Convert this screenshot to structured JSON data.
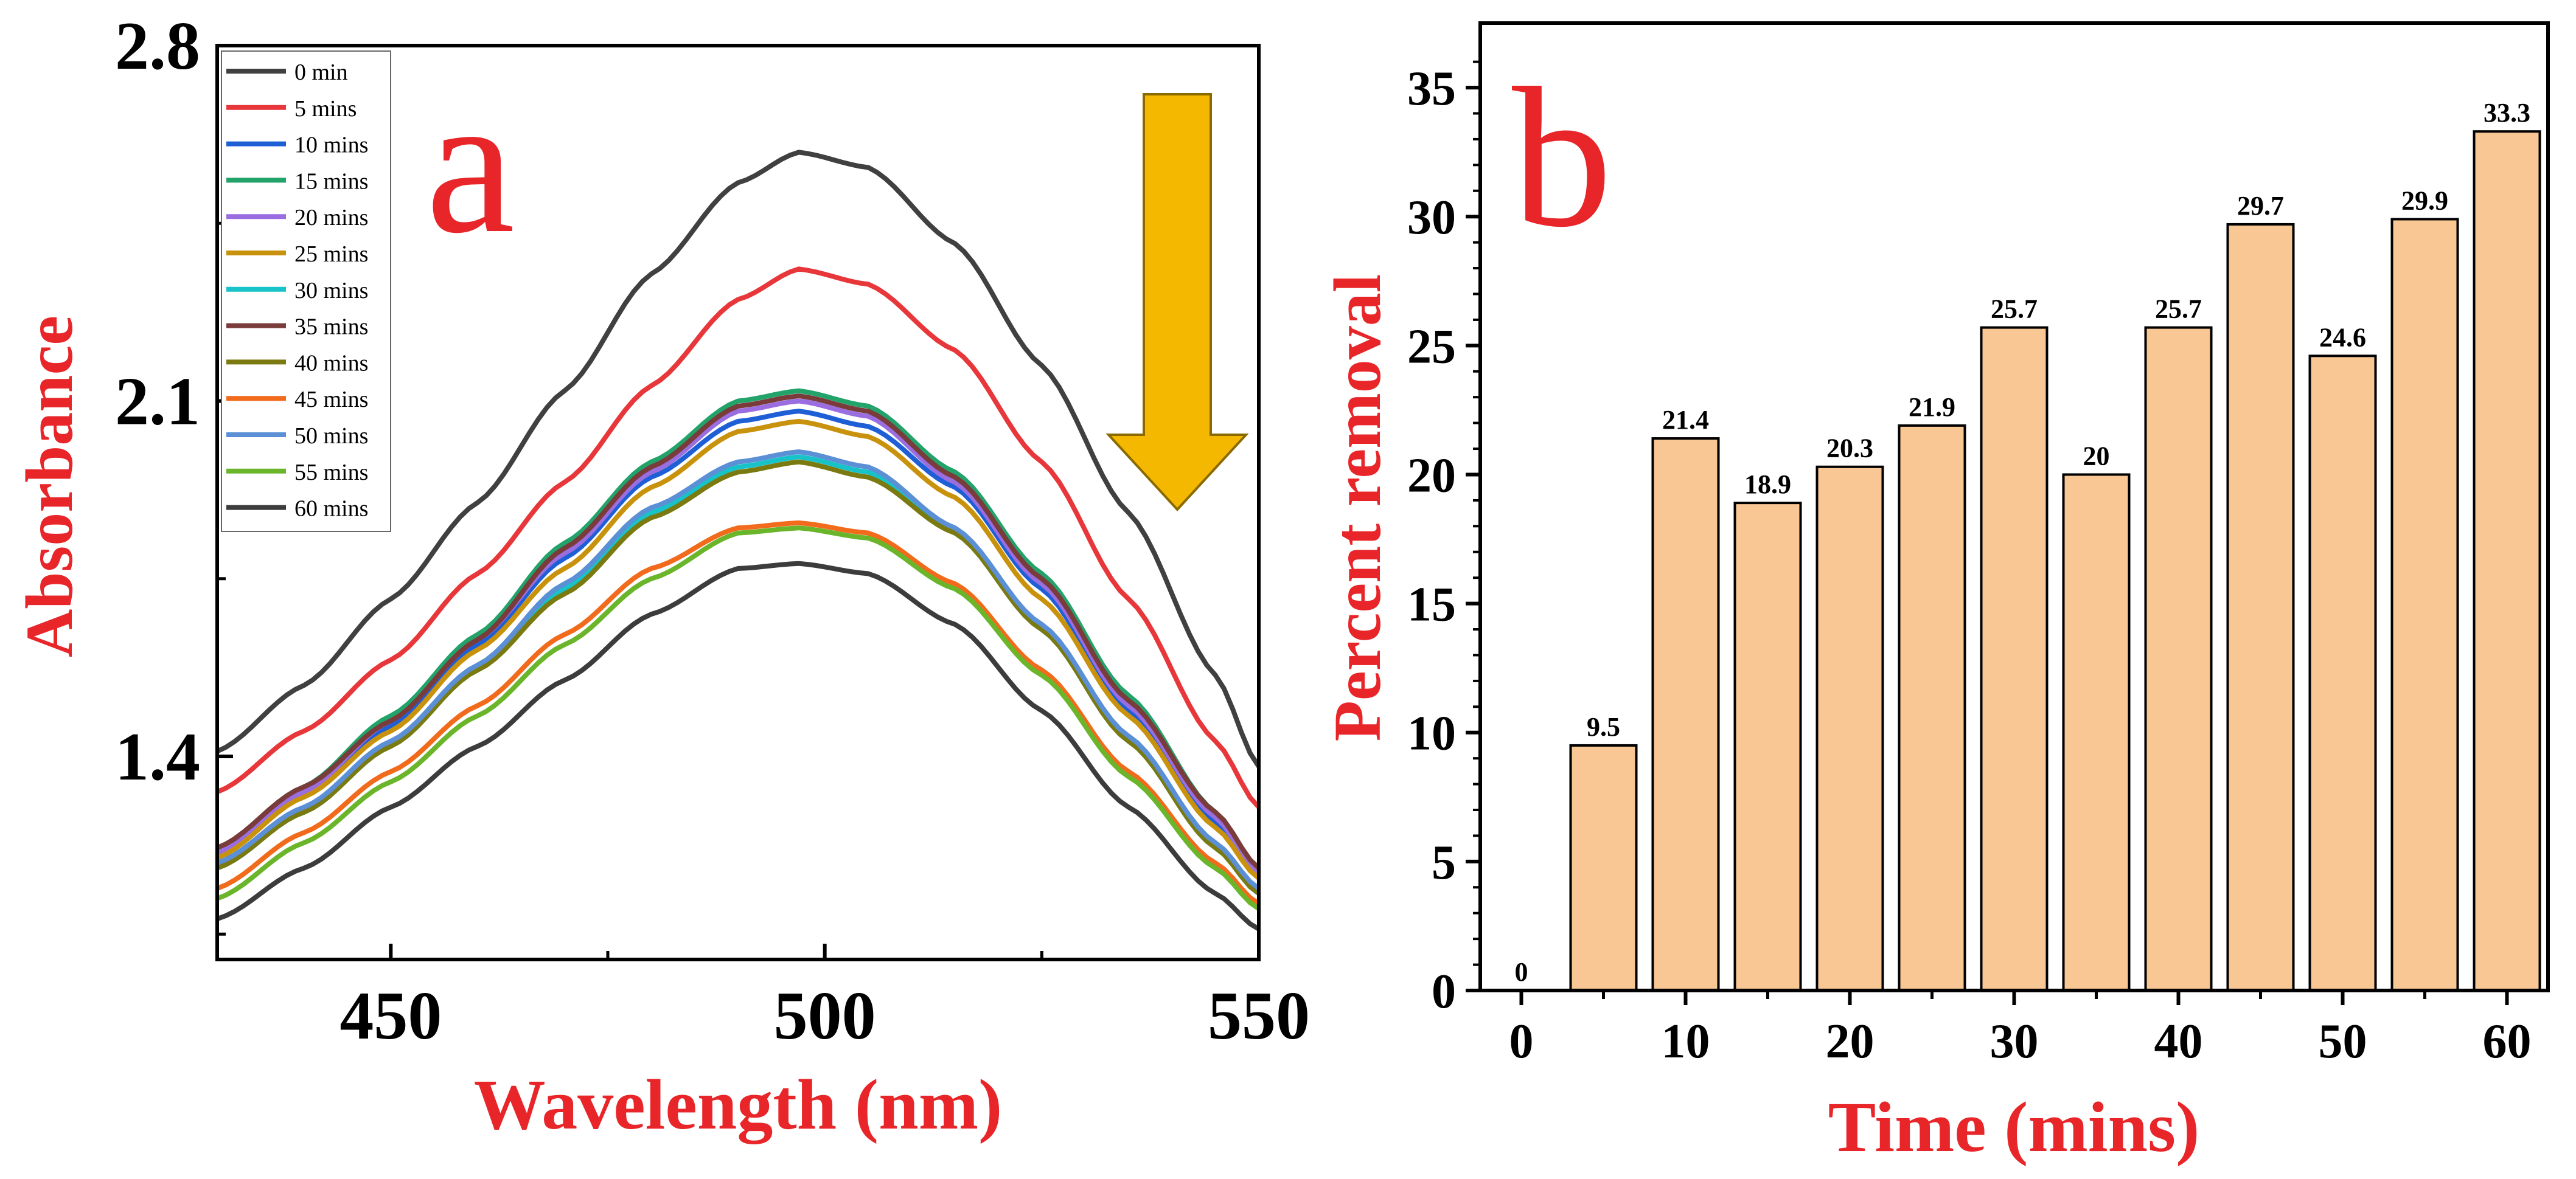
{
  "chart_data": [
    {
      "type": "line",
      "panel_label": "a",
      "xlabel": "Wavelength (nm)",
      "ylabel": "Absorbance",
      "xlim": [
        430,
        550
      ],
      "ylim": [
        1.0,
        2.8
      ],
      "xticks": [
        450,
        500,
        550
      ],
      "xtick_labels": [
        "450",
        "500",
        "550"
      ],
      "yticks": [
        1.4,
        2.1,
        2.8
      ],
      "ytick_labels": [
        "1.4",
        "2.1",
        "2.8"
      ],
      "legend_position": "top-left",
      "annotation": "down arrow (absorbance decreasing with time)",
      "x": [
        430,
        440,
        450,
        460,
        470,
        480,
        490,
        497,
        505,
        515,
        525,
        535,
        545,
        550
      ],
      "series": [
        {
          "name": "0 min",
          "color": "#404040",
          "values": [
            1.41,
            1.54,
            1.71,
            1.9,
            2.12,
            2.35,
            2.53,
            2.59,
            2.56,
            2.41,
            2.17,
            1.88,
            1.56,
            1.38
          ]
        },
        {
          "name": "5 mins",
          "color": "#e8373a",
          "values": [
            1.33,
            1.45,
            1.59,
            1.76,
            1.94,
            2.13,
            2.3,
            2.36,
            2.33,
            2.2,
            1.98,
            1.71,
            1.43,
            1.3
          ]
        },
        {
          "name": "10 mins",
          "color": "#1f5fd6",
          "values": [
            1.21,
            1.33,
            1.46,
            1.62,
            1.79,
            1.95,
            2.06,
            2.08,
            2.05,
            1.93,
            1.73,
            1.49,
            1.27,
            1.17
          ]
        },
        {
          "name": "15 mins",
          "color": "#22a36a",
          "values": [
            1.22,
            1.34,
            1.48,
            1.64,
            1.82,
            1.98,
            2.1,
            2.12,
            2.09,
            1.96,
            1.76,
            1.52,
            1.29,
            1.18
          ]
        },
        {
          "name": "20 mins",
          "color": "#9a6ee0",
          "values": [
            1.21,
            1.33,
            1.47,
            1.63,
            1.8,
            1.96,
            2.08,
            2.1,
            2.07,
            1.94,
            1.74,
            1.5,
            1.28,
            1.17
          ]
        },
        {
          "name": "25 mins",
          "color": "#c9920c",
          "values": [
            1.2,
            1.32,
            1.45,
            1.61,
            1.77,
            1.93,
            2.04,
            2.06,
            2.03,
            1.91,
            1.71,
            1.48,
            1.26,
            1.16
          ]
        },
        {
          "name": "30 mins",
          "color": "#17c2c9",
          "values": [
            1.18,
            1.29,
            1.42,
            1.57,
            1.73,
            1.88,
            1.97,
            1.99,
            1.96,
            1.84,
            1.65,
            1.43,
            1.22,
            1.13
          ]
        },
        {
          "name": "35 mins",
          "color": "#7a3b3b",
          "values": [
            1.22,
            1.34,
            1.47,
            1.63,
            1.81,
            1.97,
            2.09,
            2.11,
            2.08,
            1.95,
            1.75,
            1.51,
            1.29,
            1.18
          ]
        },
        {
          "name": "40 mins",
          "color": "#7a7a10",
          "values": [
            1.18,
            1.29,
            1.42,
            1.57,
            1.72,
            1.87,
            1.96,
            1.98,
            1.95,
            1.84,
            1.65,
            1.43,
            1.22,
            1.13
          ]
        },
        {
          "name": "45 mins",
          "color": "#f26a1b",
          "values": [
            1.14,
            1.25,
            1.37,
            1.5,
            1.64,
            1.77,
            1.85,
            1.86,
            1.84,
            1.74,
            1.57,
            1.37,
            1.19,
            1.11
          ]
        },
        {
          "name": "50 mins",
          "color": "#5b8fd6",
          "values": [
            1.19,
            1.3,
            1.43,
            1.58,
            1.74,
            1.89,
            1.98,
            2.0,
            1.97,
            1.85,
            1.66,
            1.44,
            1.23,
            1.14
          ]
        },
        {
          "name": "55 mins",
          "color": "#6ab52a",
          "values": [
            1.12,
            1.23,
            1.35,
            1.48,
            1.62,
            1.75,
            1.84,
            1.85,
            1.83,
            1.73,
            1.56,
            1.36,
            1.18,
            1.1
          ]
        },
        {
          "name": "60 mins",
          "color": "#3c3c3c",
          "values": [
            1.08,
            1.18,
            1.3,
            1.42,
            1.55,
            1.68,
            1.77,
            1.78,
            1.76,
            1.66,
            1.49,
            1.3,
            1.13,
            1.06
          ]
        }
      ]
    },
    {
      "type": "bar",
      "panel_label": "b",
      "xlabel": "Time (mins)",
      "ylabel": "Percent removal",
      "xlim": [
        -2.5,
        62.5
      ],
      "ylim": [
        0,
        37.5
      ],
      "xticks": [
        0,
        10,
        20,
        30,
        40,
        50,
        60
      ],
      "xtick_labels": [
        "0",
        "10",
        "20",
        "30",
        "40",
        "50",
        "60"
      ],
      "yticks": [
        0,
        5,
        10,
        15,
        20,
        25,
        30,
        35
      ],
      "ytick_labels": [
        "0",
        "5",
        "10",
        "15",
        "20",
        "25",
        "30",
        "35"
      ],
      "bar_color": "#f9c794",
      "x": [
        0,
        5,
        10,
        15,
        20,
        25,
        30,
        35,
        40,
        45,
        50,
        55,
        60
      ],
      "values": [
        0,
        9.5,
        21.4,
        18.9,
        20.3,
        21.9,
        25.7,
        20,
        25.7,
        29.7,
        24.6,
        29.9,
        33.3
      ],
      "data_labels": [
        "0",
        "9.5",
        "21.4",
        "18.9",
        "20.3",
        "21.9",
        "25.7",
        "20",
        "25.7",
        "29.7",
        "24.6",
        "29.9",
        "33.3"
      ]
    }
  ],
  "colors": {
    "axis": "#000000",
    "axis_title": "#e8262a",
    "panel_label": "#e8262a",
    "arrow": "#f5b800"
  }
}
